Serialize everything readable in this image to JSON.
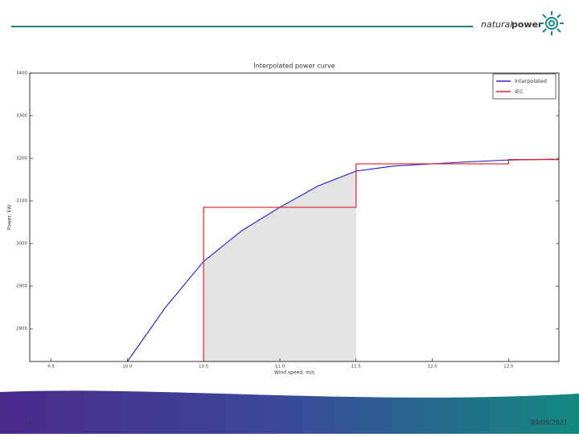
{
  "slide": {
    "logo_word1": "natural",
    "logo_word2": "power",
    "page_number": "16",
    "date": "09/09/2021"
  },
  "chart_data": {
    "type": "line",
    "title": "Interpolated power curve",
    "x_label": "Wind speed, m/s",
    "y_label": "Power, kW",
    "xlim": [
      9.36,
      12.83
    ],
    "ylim": [
      2723,
      3400
    ],
    "xticks": [
      9.5,
      {
        "value": 10,
        "label": "10.0"
      },
      10.5,
      {
        "value": 11,
        "label": "11.0"
      },
      11.5,
      {
        "value": 12,
        "label": "12.0"
      },
      12.5
    ],
    "yticks": [
      2800,
      2900,
      3000,
      3100,
      3200,
      3300,
      3400
    ],
    "shaded_interval": [
      10.5,
      11.5
    ],
    "shade_color": "#e3e3e3",
    "legend": "upper right",
    "grid": false,
    "series": [
      {
        "name": "Interpolated",
        "color": "#2a2ad0",
        "x": [
          10.0,
          10.25,
          10.5,
          10.75,
          11.0,
          11.25,
          11.5,
          11.75,
          12.0,
          12.25,
          12.5,
          12.8
        ],
        "values": [
          2723,
          2850,
          2958,
          3030,
          3085,
          3135,
          3170,
          3182,
          3187,
          3192,
          3196,
          3198
        ]
      },
      {
        "name": "IEC",
        "color": "#e02020",
        "x": [
          10.5,
          10.5,
          11.5,
          11.5,
          12.5,
          12.5,
          12.83
        ],
        "values": [
          2723,
          3085,
          3085,
          3187,
          3187,
          3197,
          3197
        ]
      }
    ]
  }
}
